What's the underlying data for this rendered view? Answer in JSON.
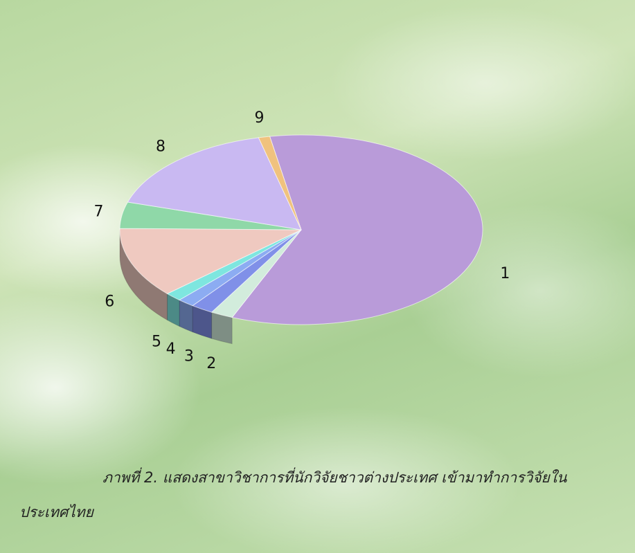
{
  "chart_data": {
    "type": "pie",
    "categories": [
      "1",
      "2",
      "3",
      "4",
      "5",
      "6",
      "7",
      "8",
      "9"
    ],
    "values": [
      59,
      2,
      2,
      1.5,
      1.5,
      12,
      4.5,
      16.5,
      1
    ],
    "colors": [
      "#b99bd9",
      "#d2ecdc",
      "#8090e8",
      "#8cacf2",
      "#7ee6df",
      "#efc9c0",
      "#8fd8a8",
      "#c9b9f2",
      "#f0c27e"
    ],
    "caption": "ภาพที่ 2. แสดงสาขาวิชาการที่นักวิจัยชาวต่างประเทศ เข้ามาทำการวิจัยในประเทศไทย"
  }
}
